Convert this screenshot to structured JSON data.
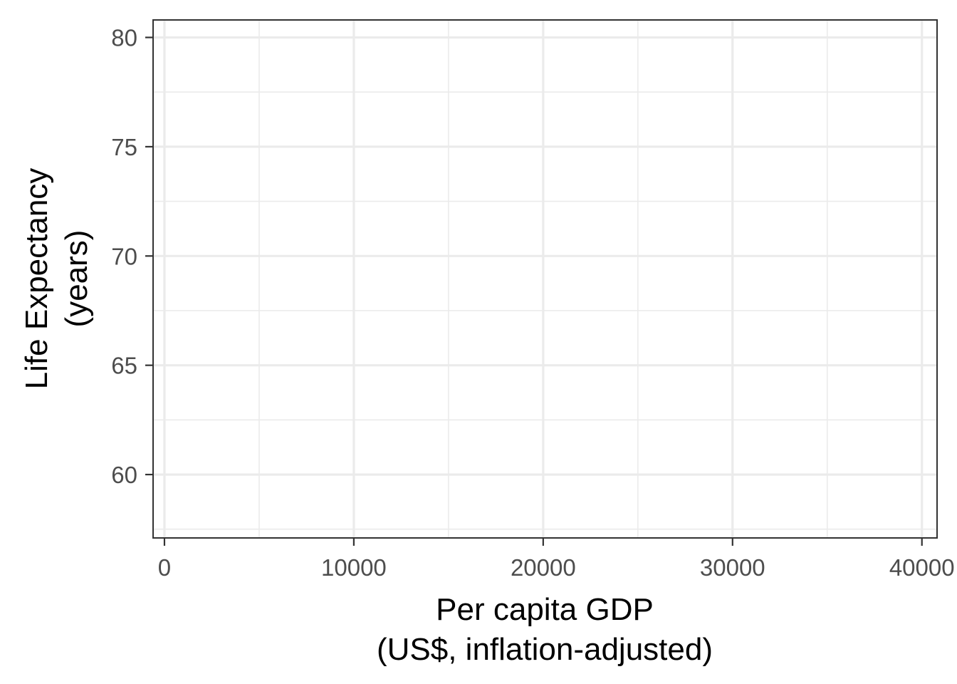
{
  "chart_data": {
    "type": "scatter",
    "title": "",
    "xlabel": "Per capita GDP",
    "xlabel_line2": "(US$, inflation-adjusted)",
    "ylabel": "Life Expectancy",
    "ylabel_line2": "(years)",
    "xlim": [
      -600,
      40800
    ],
    "ylim": [
      57.1,
      80.8
    ],
    "x_ticks": [
      0,
      10000,
      20000,
      30000,
      40000
    ],
    "x_tick_labels": [
      "0",
      "10000",
      "20000",
      "30000",
      "40000"
    ],
    "x_minor_ticks": [
      5000,
      15000,
      25000,
      35000
    ],
    "y_ticks": [
      60,
      65,
      70,
      75,
      80
    ],
    "y_tick_labels": [
      "60",
      "65",
      "70",
      "75",
      "80"
    ],
    "y_minor_ticks": [
      57.5,
      62.5,
      67.5,
      72.5,
      77.5
    ],
    "grid": true,
    "legend": "none",
    "series": [],
    "colors": {
      "panel_border": "#333333",
      "grid_major": "#ebebeb",
      "grid_minor": "#ebebeb",
      "tick_text": "#4d4d4d",
      "axis_title": "#000000"
    }
  }
}
